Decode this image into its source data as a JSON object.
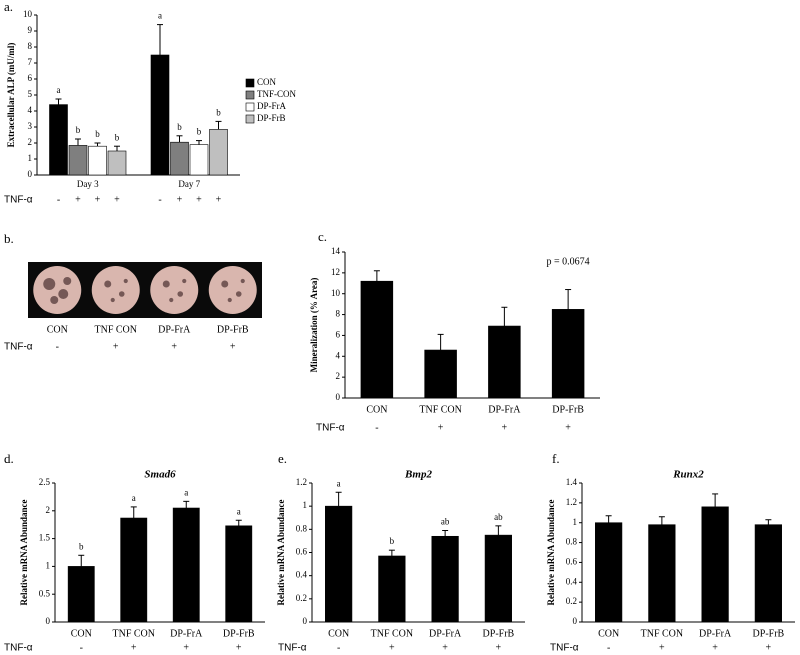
{
  "chart_data": [
    {
      "type": "grouped_bar",
      "label": "a.",
      "y_label": "Extracellular ALP (mU/ml)",
      "categories": [
        "Day 3",
        "Day 7"
      ],
      "series": [
        {
          "name": "CON",
          "color": "#000000",
          "values": [
            4.4,
            7.5
          ],
          "errors": [
            0.35,
            1.9
          ],
          "letters": [
            "a",
            "a"
          ]
        },
        {
          "name": "TNF-CON",
          "color": "#7f7f7f",
          "values": [
            1.85,
            2.05
          ],
          "errors": [
            0.4,
            0.4
          ],
          "letters": [
            "b",
            "b"
          ]
        },
        {
          "name": "DP-FrA",
          "color": "#ffffff",
          "values": [
            1.8,
            1.9
          ],
          "errors": [
            0.2,
            0.25
          ],
          "letters": [
            "b",
            "b"
          ]
        },
        {
          "name": "DP-FrB",
          "color": "#bfbfbf",
          "values": [
            1.5,
            2.85
          ],
          "errors": [
            0.3,
            0.5
          ],
          "letters": [
            "b",
            "b"
          ]
        }
      ],
      "ylim": [
        0,
        10
      ],
      "yticks": [
        0,
        1,
        2,
        3,
        4,
        5,
        6,
        7,
        8,
        9,
        10
      ],
      "tnf_label": "TNF-α",
      "tnf": [
        "-",
        "+",
        "+",
        "+",
        "-",
        "+",
        "+",
        "+"
      ]
    },
    {
      "type": "image",
      "label": "b.",
      "categories": [
        "CON",
        "TNF CON",
        "DP-FrA",
        "DP-FrB"
      ],
      "tnf_label": "TNF-α",
      "tnf": [
        "-",
        "+",
        "+",
        "+"
      ]
    },
    {
      "type": "bar",
      "label": "c.",
      "y_label": "Mineralization (% Area)",
      "annotation": "p = 0.0674",
      "categories": [
        "CON",
        "TNF CON",
        "DP-FrA",
        "DP-FrB"
      ],
      "values": [
        11.2,
        4.6,
        6.9,
        8.5
      ],
      "errors": [
        1.0,
        1.5,
        1.8,
        1.9
      ],
      "color": "#000000",
      "ylim": [
        0,
        14
      ],
      "yticks": [
        0,
        2,
        4,
        6,
        8,
        10,
        12,
        14
      ],
      "tnf_label": "TNF-α",
      "tnf": [
        "-",
        "+",
        "+",
        "+"
      ]
    },
    {
      "type": "bar",
      "label": "d.",
      "title": "Smad6",
      "y_label": "Relative mRNA Abundance",
      "categories": [
        "CON",
        "TNF CON",
        "DP-FrA",
        "DP-FrB"
      ],
      "values": [
        1.0,
        1.87,
        2.05,
        1.73
      ],
      "errors": [
        0.2,
        0.2,
        0.12,
        0.1
      ],
      "letters": [
        "b",
        "a",
        "a",
        "a"
      ],
      "color": "#000000",
      "ylim": [
        0,
        2.5
      ],
      "yticks": [
        0,
        0.5,
        1,
        1.5,
        2,
        2.5
      ],
      "tnf_label": "TNF-α",
      "tnf": [
        "-",
        "+",
        "+",
        "+"
      ]
    },
    {
      "type": "bar",
      "label": "e.",
      "title": "Bmp2",
      "y_label": "Relative mRNA Abundance",
      "categories": [
        "CON",
        "TNF CON",
        "DP-FrA",
        "DP-FrB"
      ],
      "values": [
        1.0,
        0.57,
        0.74,
        0.75
      ],
      "errors": [
        0.12,
        0.05,
        0.05,
        0.08
      ],
      "letters": [
        "a",
        "b",
        "ab",
        "ab"
      ],
      "color": "#000000",
      "ylim": [
        0,
        1.2
      ],
      "yticks": [
        0,
        0.2,
        0.4,
        0.6,
        0.8,
        1,
        1.2
      ],
      "tnf_label": "TNF-α",
      "tnf": [
        "-",
        "+",
        "+",
        "+"
      ]
    },
    {
      "type": "bar",
      "label": "f.",
      "title": "Runx2",
      "y_label": "Relative mRNA Abundance",
      "categories": [
        "CON",
        "TNF CON",
        "DP-FrA",
        "DP-FrB"
      ],
      "values": [
        1.0,
        0.98,
        1.16,
        0.98
      ],
      "errors": [
        0.07,
        0.08,
        0.13,
        0.05
      ],
      "color": "#000000",
      "ylim": [
        0,
        1.4
      ],
      "yticks": [
        0,
        0.2,
        0.4,
        0.6,
        0.8,
        1,
        1.2,
        1.4
      ],
      "tnf_label": "TNF-α",
      "tnf": [
        "-",
        "+",
        "+",
        "+"
      ]
    }
  ]
}
